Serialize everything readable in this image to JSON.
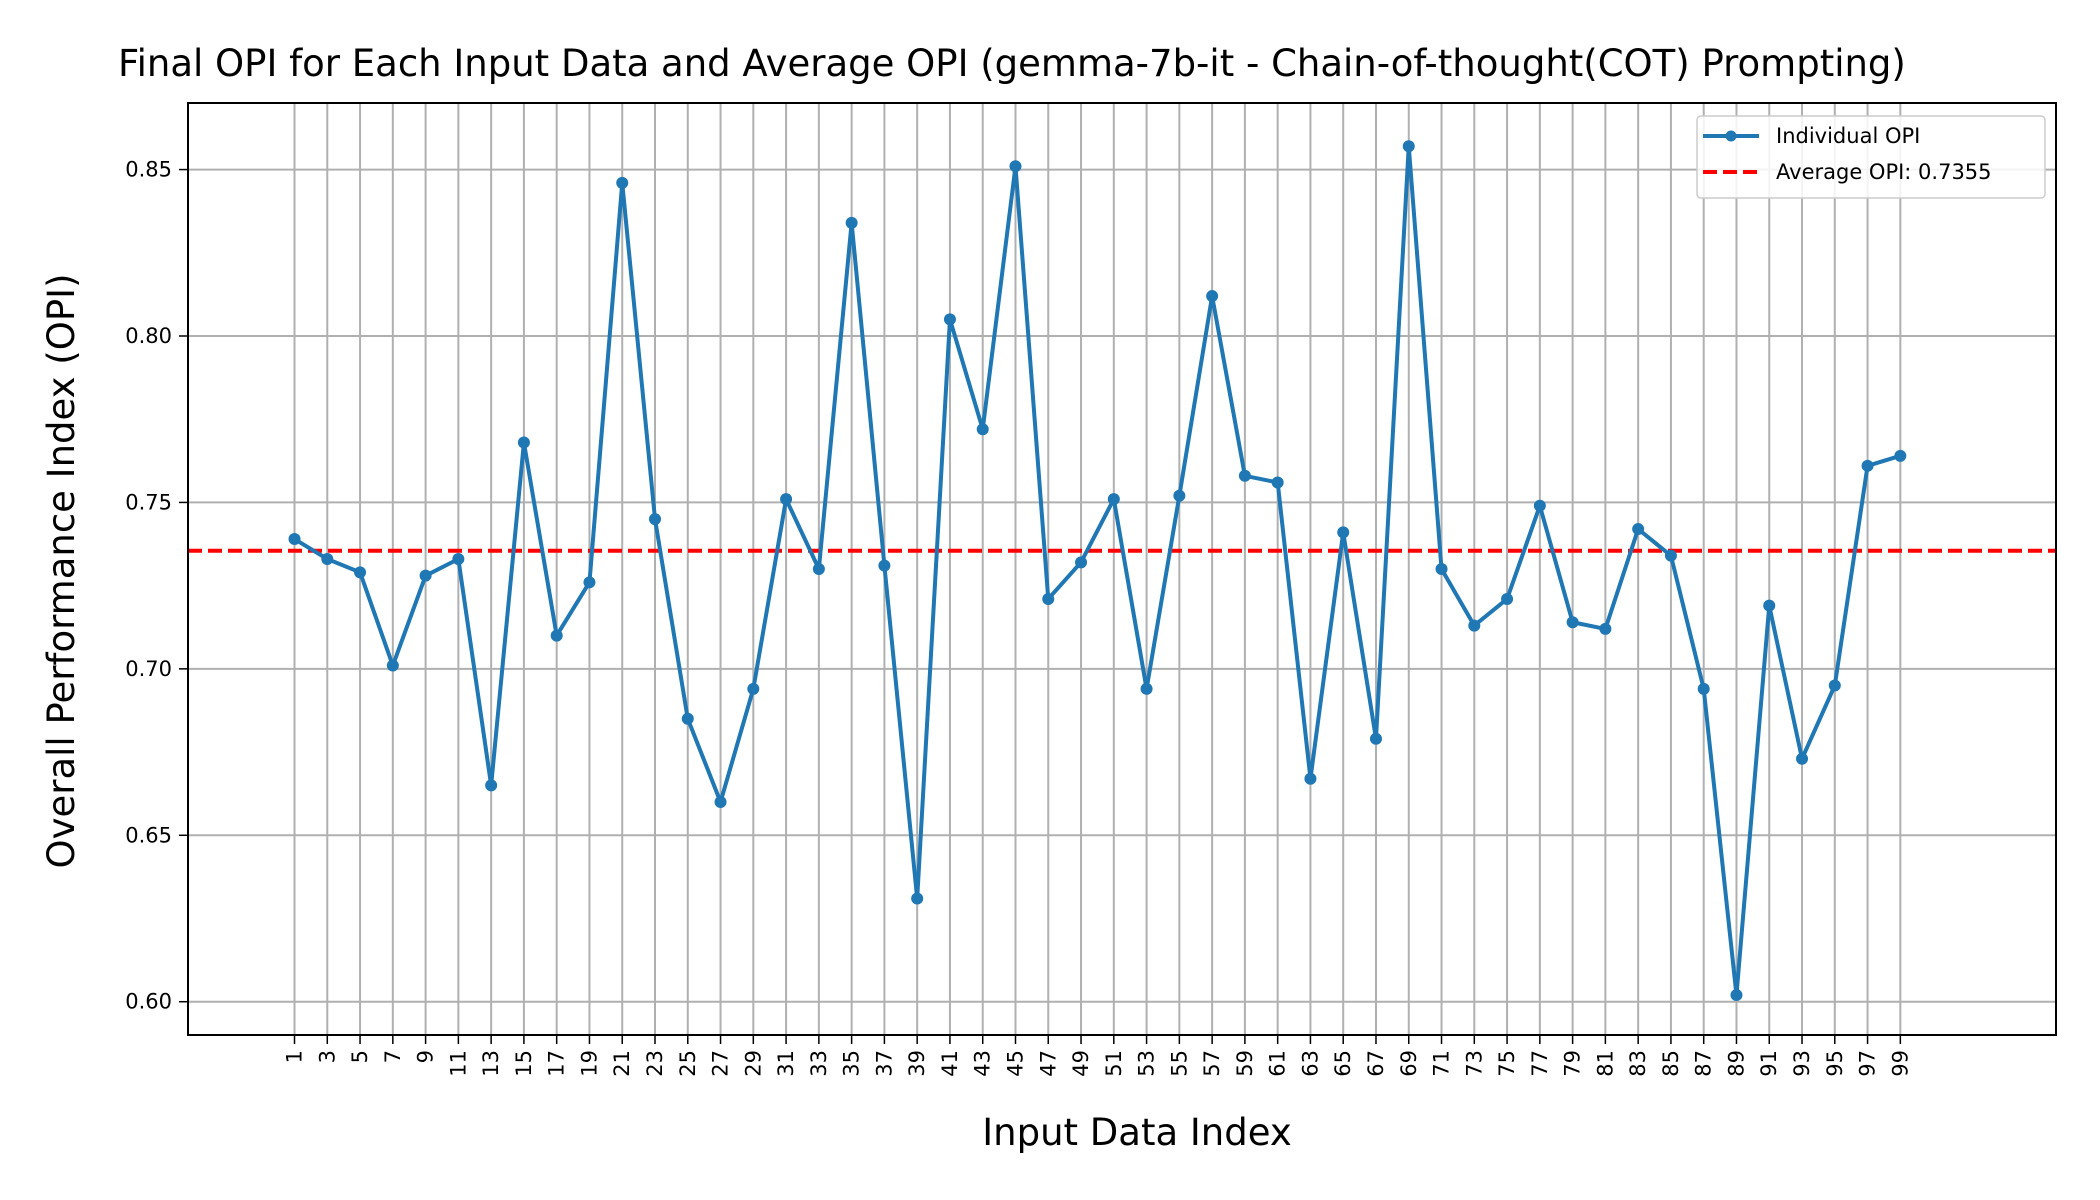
{
  "colors": {
    "series": "#1f77b4",
    "average": "#ff0000",
    "grid": "#b0b0b0",
    "axis": "#000000",
    "legend_border": "#cccccc"
  },
  "chart_data": {
    "type": "line",
    "title": "Final OPI for Each Input Data and Average OPI (gemma-7b-it - Chain-of-thought(COT) Prompting)",
    "xlabel": "Input Data Index",
    "ylabel": "Overall Performance Index (OPI)",
    "xlim": [
      -5.5,
      108.5
    ],
    "ylim": [
      0.59,
      0.87
    ],
    "x_ticks": [
      1,
      3,
      5,
      7,
      9,
      11,
      13,
      15,
      17,
      19,
      21,
      23,
      25,
      27,
      29,
      31,
      33,
      35,
      37,
      39,
      41,
      43,
      45,
      47,
      49,
      51,
      53,
      55,
      57,
      59,
      61,
      63,
      65,
      67,
      69,
      71,
      73,
      75,
      77,
      79,
      81,
      83,
      85,
      87,
      89,
      91,
      93,
      95,
      97,
      99
    ],
    "y_ticks": [
      0.6,
      0.65,
      0.7,
      0.75,
      0.8,
      0.85
    ],
    "y_tick_labels": [
      "0.60",
      "0.65",
      "0.70",
      "0.75",
      "0.80",
      "0.85"
    ],
    "grid": true,
    "legend_position": "top-right",
    "series": [
      {
        "name": "Individual OPI",
        "x": [
          1,
          3,
          5,
          7,
          9,
          11,
          13,
          15,
          17,
          19,
          21,
          23,
          25,
          27,
          29,
          31,
          33,
          35,
          37,
          39,
          41,
          43,
          45,
          47,
          49,
          51,
          53,
          55,
          57,
          59,
          61,
          63,
          65,
          67,
          69,
          71,
          73,
          75,
          77,
          79,
          81,
          83,
          85,
          87,
          89,
          91,
          93,
          95,
          97,
          99
        ],
        "values": [
          0.739,
          0.733,
          0.729,
          0.701,
          0.728,
          0.733,
          0.665,
          0.768,
          0.71,
          0.726,
          0.846,
          0.745,
          0.685,
          0.66,
          0.694,
          0.751,
          0.73,
          0.834,
          0.731,
          0.631,
          0.805,
          0.772,
          0.851,
          0.721,
          0.732,
          0.751,
          0.694,
          0.752,
          0.812,
          0.758,
          0.756,
          0.667,
          0.741,
          0.679,
          0.857,
          0.73,
          0.713,
          0.721,
          0.749,
          0.714,
          0.712,
          0.742,
          0.734,
          0.694,
          0.602,
          0.719,
          0.673,
          0.695,
          0.761,
          0.764
        ]
      }
    ],
    "average": {
      "name": "Average OPI: 0.7355",
      "value": 0.7355
    }
  }
}
